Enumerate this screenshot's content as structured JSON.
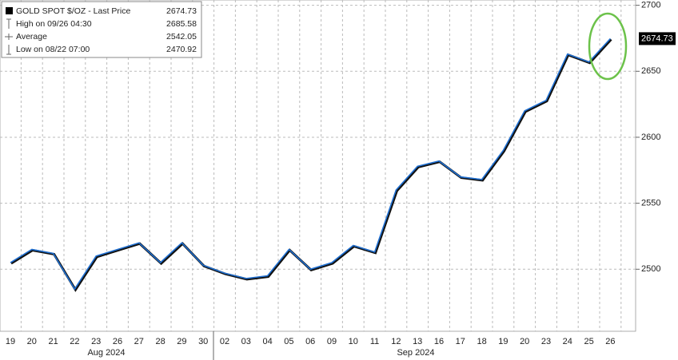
{
  "chart_data": {
    "type": "line",
    "legend": {
      "title": "GOLD SPOT $/OZ - Last Price",
      "last": 2674.73,
      "rows": [
        {
          "label": "High on 09/26 04:30",
          "value": 2685.58
        },
        {
          "label": "Average",
          "value": 2542.05
        },
        {
          "label": "Low on 08/22 07:00",
          "value": 2470.92
        }
      ]
    },
    "categories": [
      "19",
      "20",
      "21",
      "22",
      "23",
      "26",
      "27",
      "28",
      "29",
      "30",
      "02",
      "03",
      "04",
      "05",
      "06",
      "09",
      "10",
      "11",
      "12",
      "13",
      "16",
      "17",
      "18",
      "19",
      "20",
      "23",
      "24",
      "25",
      "26"
    ],
    "months": [
      "Aug 2024",
      "Sep 2024"
    ],
    "series": [
      {
        "name": "GOLD SPOT $/OZ",
        "color": "#1f6fd1",
        "values": [
          2505,
          2515,
          2512,
          2485,
          2510,
          2515,
          2520,
          2505,
          2520,
          2503,
          2497,
          2493,
          2495,
          2515,
          2500,
          2505,
          2518,
          2513,
          2560,
          2578,
          2582,
          2570,
          2568,
          2590,
          2620,
          2628,
          2663,
          2657,
          2674.73
        ]
      }
    ],
    "ylim": [
      2453,
      2704
    ],
    "yticks": [
      2500,
      2550,
      2600,
      2650,
      2700
    ],
    "grid": true
  }
}
